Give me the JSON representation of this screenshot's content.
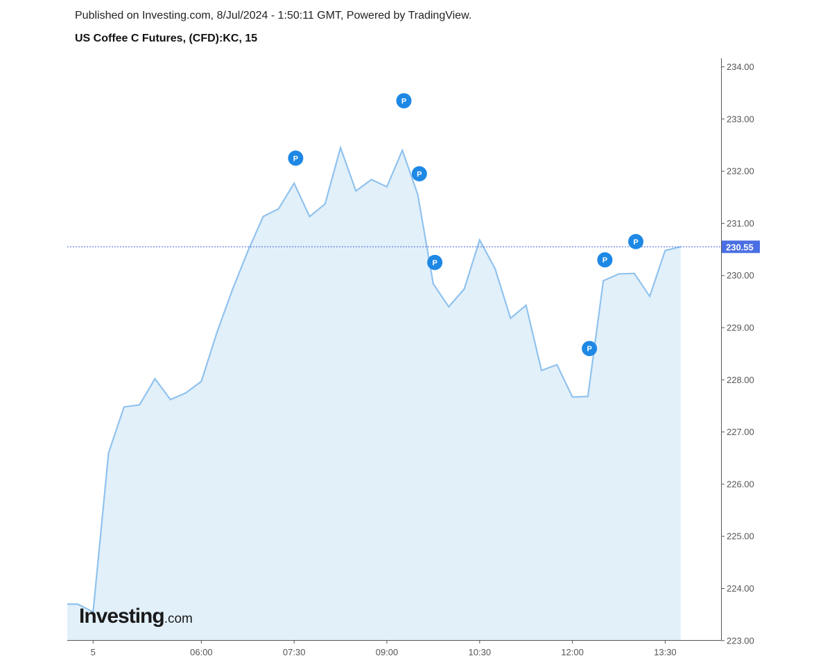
{
  "header": {
    "published": "Published on Investing.com, 8/Jul/2024 - 1:50:11 GMT, Powered by TradingView.",
    "instrument": "US Coffee C Futures, (CFD):KC, 15"
  },
  "logo": {
    "main": "Investing",
    "suffix": ".com"
  },
  "chart_data": {
    "type": "area",
    "title": "US Coffee C Futures, (CFD):KC, 15",
    "x_tick_labels": [
      "5",
      "06:00",
      "07:30",
      "09:00",
      "10:30",
      "12:00",
      "13:30"
    ],
    "x_tick_index": [
      1,
      8,
      14,
      20,
      26,
      32,
      38
    ],
    "y_ticks": [
      "234.00",
      "233.00",
      "232.00",
      "231.00",
      "230.00",
      "229.00",
      "228.00",
      "227.00",
      "226.00",
      "225.00",
      "224.00",
      "223.00"
    ],
    "ylim": [
      222.9,
      234.2
    ],
    "last_price": "230.55",
    "values": [
      223.7,
      223.55,
      226.6,
      227.48,
      227.52,
      228.02,
      227.62,
      227.75,
      227.97,
      228.9,
      229.72,
      230.46,
      231.13,
      231.28,
      231.77,
      231.13,
      231.37,
      232.45,
      231.62,
      231.84,
      231.7,
      232.4,
      231.55,
      229.84,
      229.4,
      229.74,
      230.68,
      230.13,
      229.18,
      229.43,
      228.18,
      228.29,
      227.67,
      227.68,
      229.9,
      230.03,
      230.04,
      229.6,
      230.48,
      230.55
    ],
    "p_markers": [
      {
        "index": 14.1,
        "value": 232.25
      },
      {
        "index": 21.1,
        "value": 233.35
      },
      {
        "index": 22.1,
        "value": 231.95
      },
      {
        "index": 23.1,
        "value": 230.25
      },
      {
        "index": 33.1,
        "value": 228.6
      },
      {
        "index": 34.1,
        "value": 230.3
      },
      {
        "index": 36.1,
        "value": 230.65
      }
    ],
    "marker_label": "P",
    "grid": false,
    "colors": {
      "line": "#90c2ee",
      "fill": "#e2f0fa",
      "marker": "#1e88e5",
      "price_tag": "#4a6fe3",
      "price_line": "#3b5fe0"
    }
  }
}
